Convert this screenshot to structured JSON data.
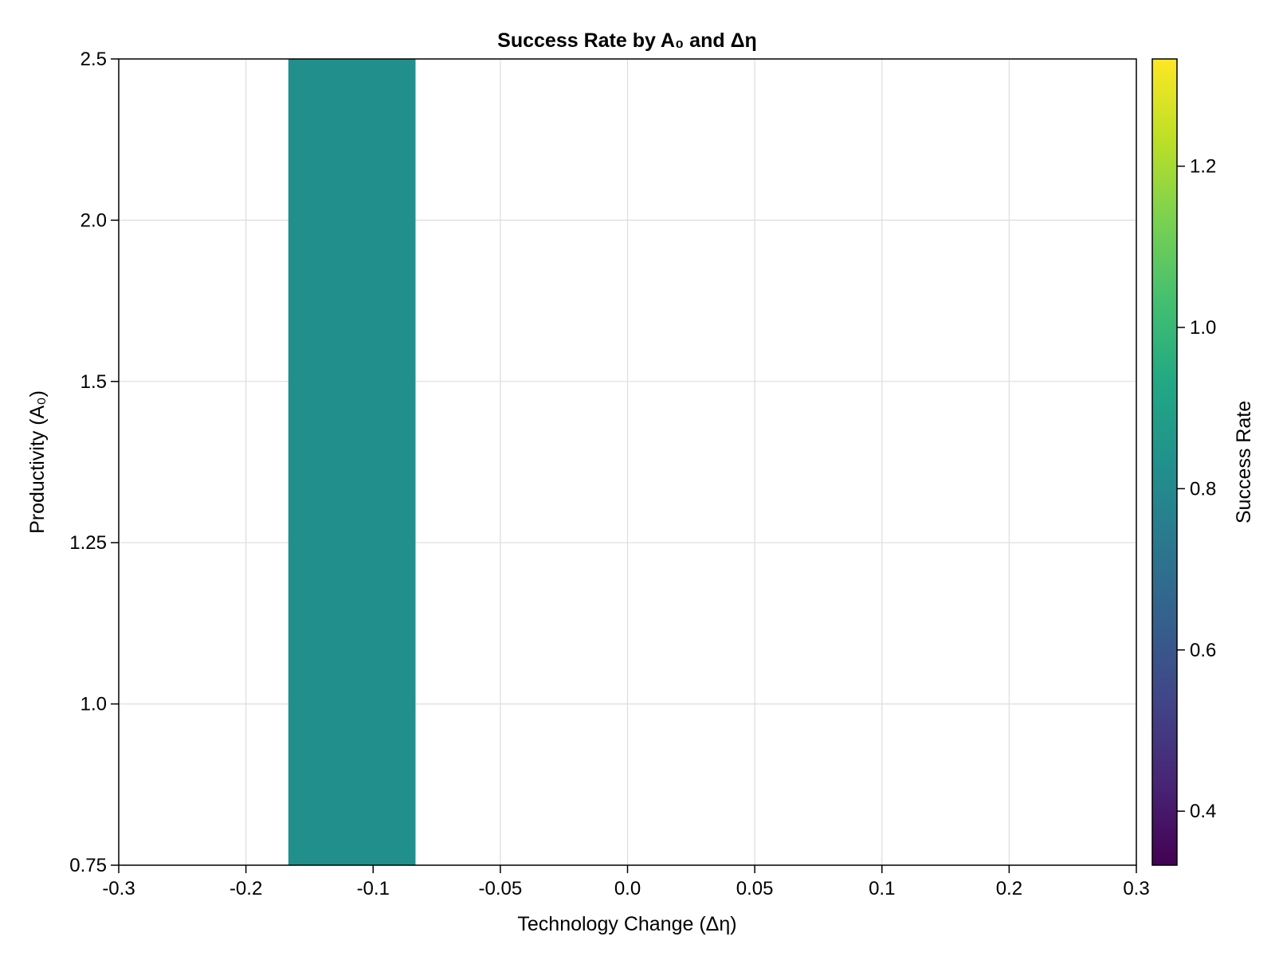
{
  "chart_data": {
    "type": "heatmap",
    "title": "Success Rate by A₀ and Δη",
    "xlabel": "Technology Change (Δη)",
    "ylabel": "Productivity (A₀)",
    "x_tick_labels": [
      "-0.3",
      "-0.2",
      "-0.1",
      "-0.05",
      "0.0",
      "0.05",
      "0.1",
      "0.2",
      "0.3"
    ],
    "y_tick_labels": [
      "0.75",
      "1.0",
      "1.25",
      "1.5",
      "2.0",
      "2.5"
    ],
    "grid": true,
    "cells": [
      {
        "x_from": "-0.2",
        "x_to": "-0.1",
        "y_from": "0.75",
        "y_to": "2.5",
        "value": 0.833
      }
    ],
    "colorbar": {
      "label": "Success Rate",
      "range": [
        0.333,
        1.333
      ],
      "ticks": [
        "0.4",
        "0.6",
        "0.8",
        "1.0",
        "1.2"
      ],
      "colormap": "viridis"
    },
    "cell_color": "#21908C"
  }
}
